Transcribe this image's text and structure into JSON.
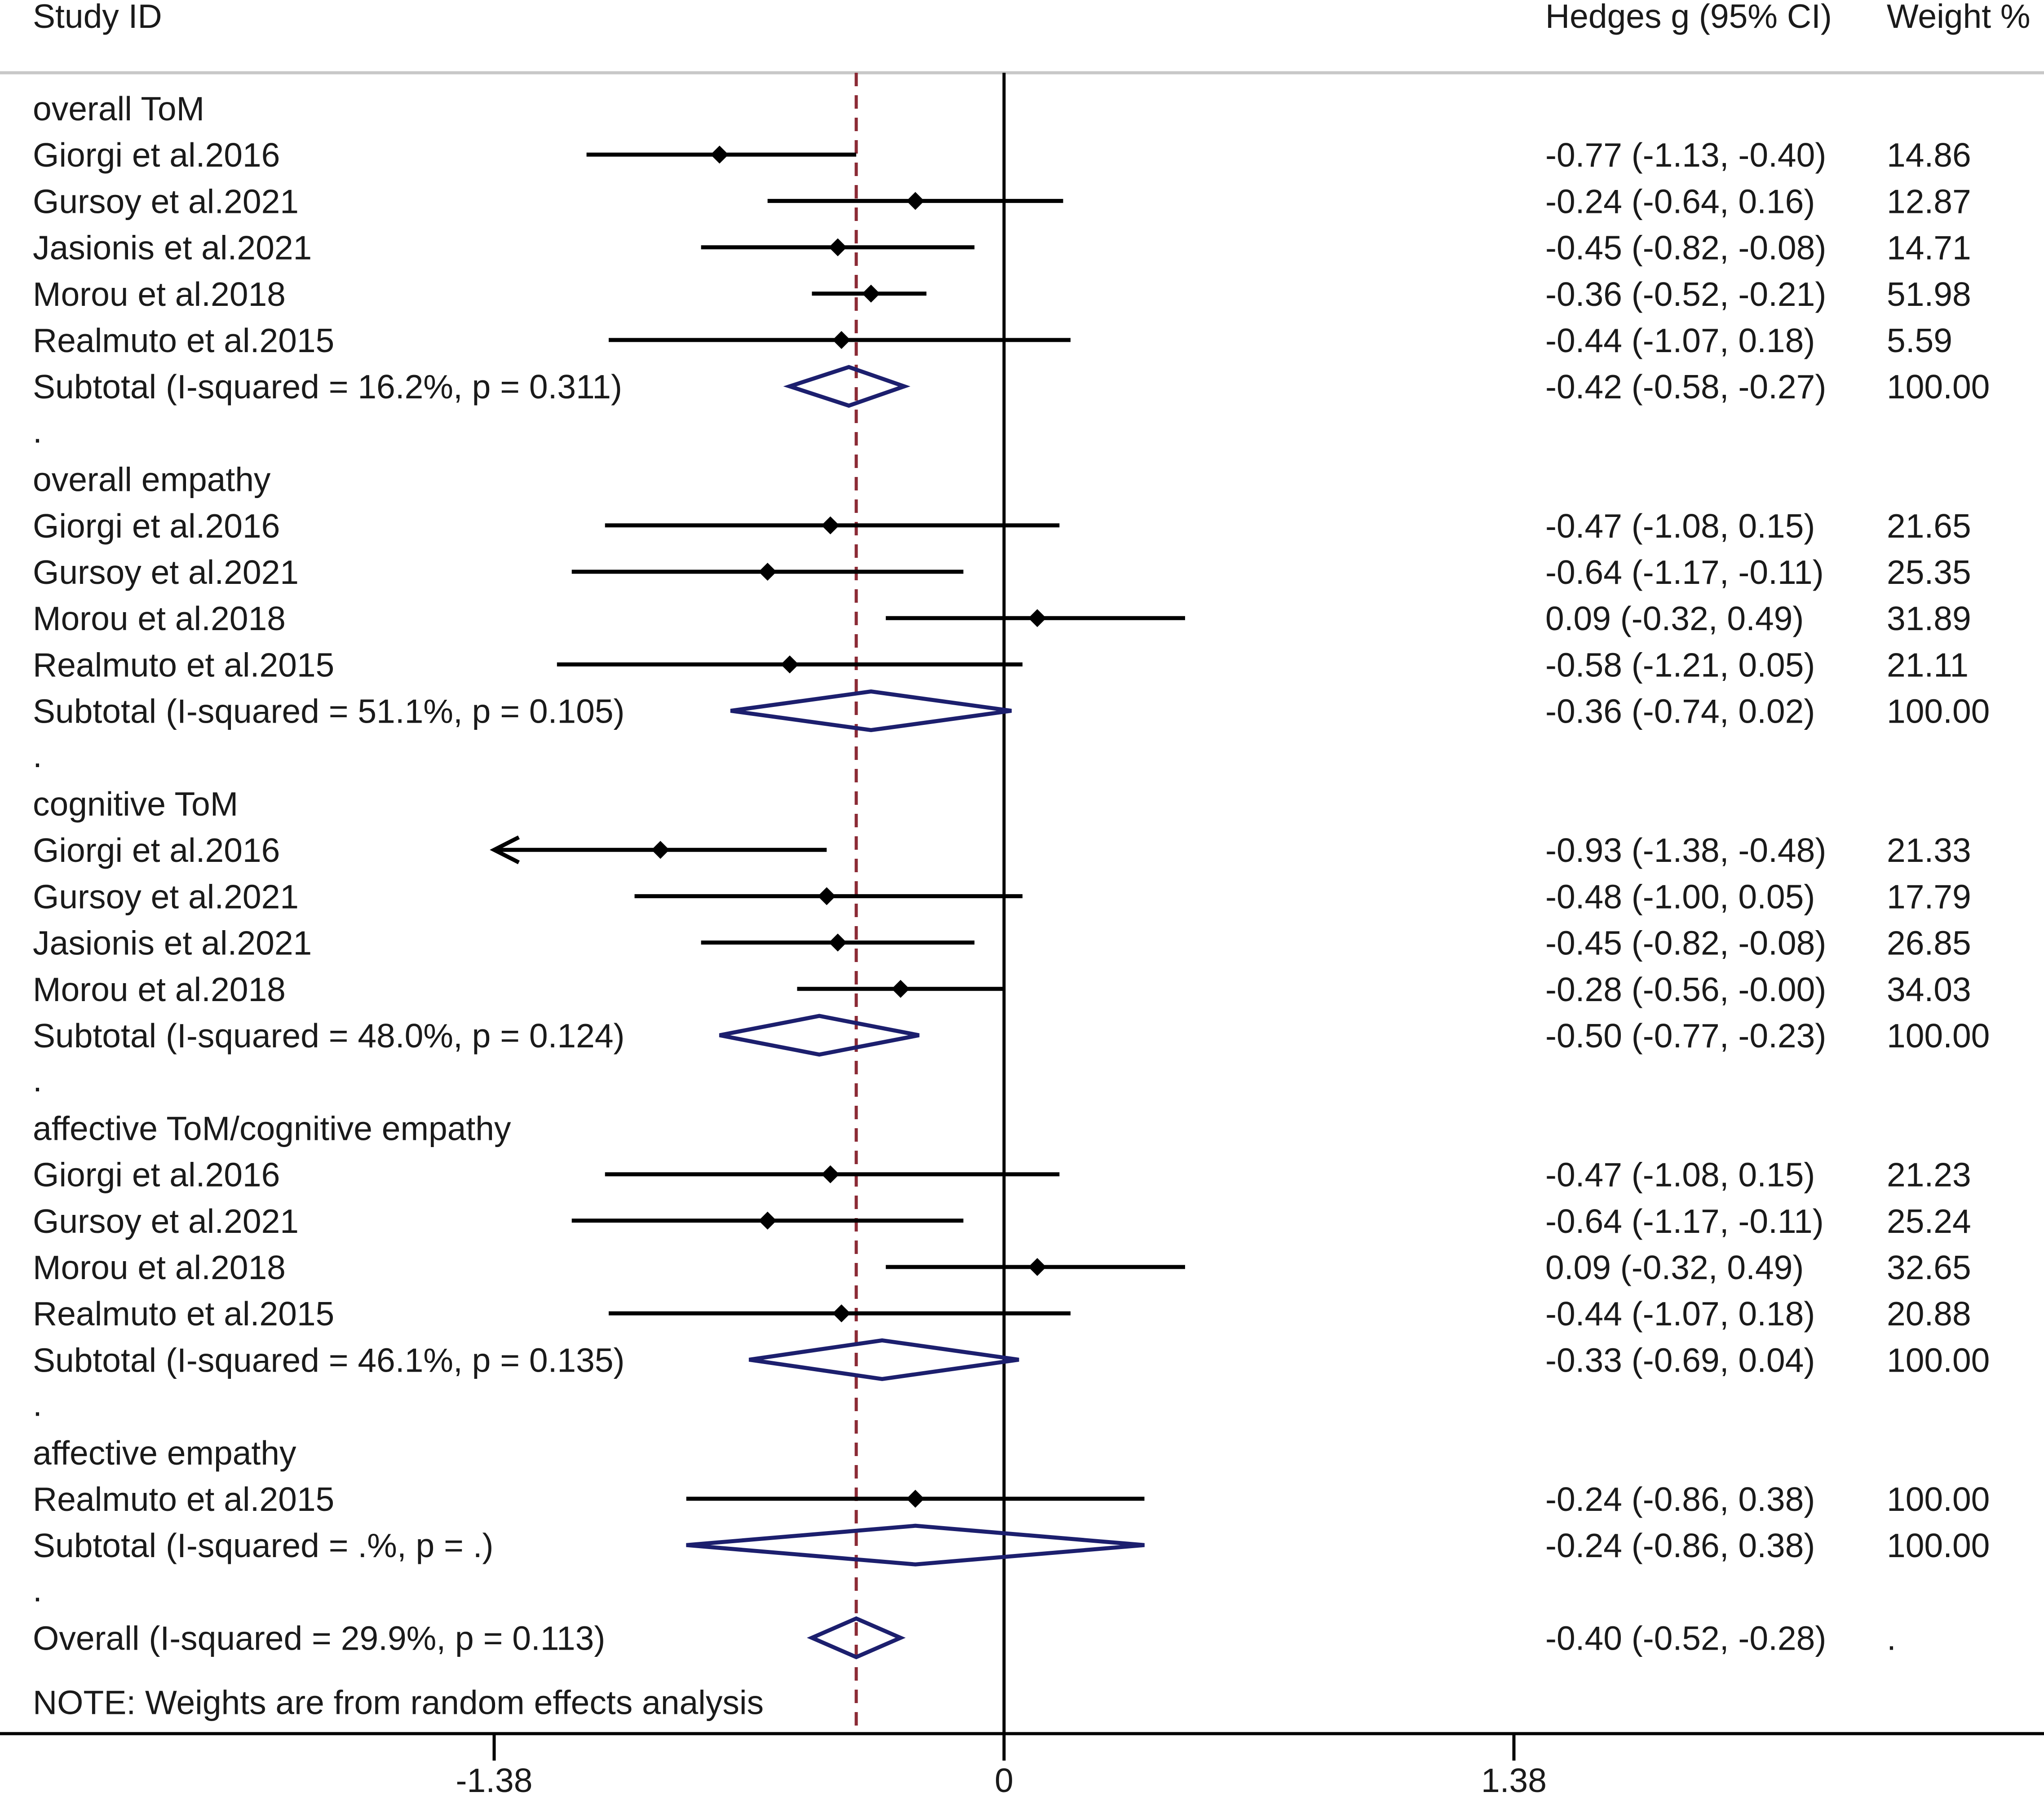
{
  "chart_data": {
    "type": "forest",
    "headers": {
      "study": "Study ID",
      "effect": "Hedges g (95% CI)",
      "weight": "Weight %"
    },
    "xticks": [
      {
        "value": -1.38,
        "label": "-1.38"
      },
      {
        "value": 0,
        "label": "0"
      },
      {
        "value": 1.38,
        "label": "1.38"
      }
    ],
    "xlim": [
      -2.7,
      2.75
    ],
    "overall_reference": -0.4,
    "rows": [
      {
        "kind": "group",
        "label": "overall ToM"
      },
      {
        "kind": "study",
        "label": "Giorgi et al.2016",
        "es": -0.77,
        "lo": -1.13,
        "hi": -0.4,
        "ci_text": "-0.77 (-1.13, -0.40)",
        "weight": "14.86"
      },
      {
        "kind": "study",
        "label": "Gursoy et al.2021",
        "es": -0.24,
        "lo": -0.64,
        "hi": 0.16,
        "ci_text": "-0.24 (-0.64, 0.16)",
        "weight": "12.87"
      },
      {
        "kind": "study",
        "label": "Jasionis et al.2021",
        "es": -0.45,
        "lo": -0.82,
        "hi": -0.08,
        "ci_text": "-0.45 (-0.82, -0.08)",
        "weight": "14.71"
      },
      {
        "kind": "study",
        "label": "Morou et al.2018",
        "es": -0.36,
        "lo": -0.52,
        "hi": -0.21,
        "ci_text": "-0.36 (-0.52, -0.21)",
        "weight": "51.98"
      },
      {
        "kind": "study",
        "label": "Realmuto et al.2015",
        "es": -0.44,
        "lo": -1.07,
        "hi": 0.18,
        "ci_text": "-0.44 (-1.07, 0.18)",
        "weight": "5.59"
      },
      {
        "kind": "subtotal",
        "label": "Subtotal  (I-squared = 16.2%, p = 0.311)",
        "es": -0.42,
        "lo": -0.58,
        "hi": -0.27,
        "ci_text": "-0.42 (-0.58, -0.27)",
        "weight": "100.00"
      },
      {
        "kind": "dot",
        "label": "."
      },
      {
        "kind": "group",
        "label": "overall empathy"
      },
      {
        "kind": "study",
        "label": "Giorgi et al.2016",
        "es": -0.47,
        "lo": -1.08,
        "hi": 0.15,
        "ci_text": "-0.47 (-1.08, 0.15)",
        "weight": "21.65"
      },
      {
        "kind": "study",
        "label": "Gursoy et al.2021",
        "es": -0.64,
        "lo": -1.17,
        "hi": -0.11,
        "ci_text": "-0.64 (-1.17, -0.11)",
        "weight": "25.35"
      },
      {
        "kind": "study",
        "label": "Morou et al.2018",
        "es": 0.09,
        "lo": -0.32,
        "hi": 0.49,
        "ci_text": "0.09 (-0.32, 0.49)",
        "weight": "31.89"
      },
      {
        "kind": "study",
        "label": "Realmuto et al.2015",
        "es": -0.58,
        "lo": -1.21,
        "hi": 0.05,
        "ci_text": "-0.58 (-1.21, 0.05)",
        "weight": "21.11"
      },
      {
        "kind": "subtotal",
        "label": "Subtotal  (I-squared = 51.1%, p = 0.105)",
        "es": -0.36,
        "lo": -0.74,
        "hi": 0.02,
        "ci_text": "-0.36 (-0.74, 0.02)",
        "weight": "100.00"
      },
      {
        "kind": "dot",
        "label": "."
      },
      {
        "kind": "group",
        "label": "cognitive ToM"
      },
      {
        "kind": "study",
        "label": "Giorgi et al.2016",
        "es": -0.93,
        "lo": -1.38,
        "hi": -0.48,
        "ci_text": "-0.93 (-1.38, -0.48)",
        "weight": "21.33",
        "arrow_left": true
      },
      {
        "kind": "study",
        "label": "Gursoy et al.2021",
        "es": -0.48,
        "lo": -1.0,
        "hi": 0.05,
        "ci_text": "-0.48 (-1.00, 0.05)",
        "weight": "17.79"
      },
      {
        "kind": "study",
        "label": "Jasionis et al.2021",
        "es": -0.45,
        "lo": -0.82,
        "hi": -0.08,
        "ci_text": "-0.45 (-0.82, -0.08)",
        "weight": "26.85"
      },
      {
        "kind": "study",
        "label": "Morou et al.2018",
        "es": -0.28,
        "lo": -0.56,
        "hi": -0.0,
        "ci_text": "-0.28 (-0.56, -0.00)",
        "weight": "34.03"
      },
      {
        "kind": "subtotal",
        "label": "Subtotal  (I-squared = 48.0%, p = 0.124)",
        "es": -0.5,
        "lo": -0.77,
        "hi": -0.23,
        "ci_text": "-0.50 (-0.77, -0.23)",
        "weight": "100.00"
      },
      {
        "kind": "dot",
        "label": "."
      },
      {
        "kind": "group",
        "label": "affective ToM/cognitive empathy"
      },
      {
        "kind": "study",
        "label": "Giorgi et al.2016",
        "es": -0.47,
        "lo": -1.08,
        "hi": 0.15,
        "ci_text": "-0.47 (-1.08, 0.15)",
        "weight": "21.23"
      },
      {
        "kind": "study",
        "label": "Gursoy et al.2021",
        "es": -0.64,
        "lo": -1.17,
        "hi": -0.11,
        "ci_text": "-0.64 (-1.17, -0.11)",
        "weight": "25.24"
      },
      {
        "kind": "study",
        "label": "Morou et al.2018",
        "es": 0.09,
        "lo": -0.32,
        "hi": 0.49,
        "ci_text": "0.09 (-0.32, 0.49)",
        "weight": "32.65"
      },
      {
        "kind": "study",
        "label": "Realmuto et al.2015",
        "es": -0.44,
        "lo": -1.07,
        "hi": 0.18,
        "ci_text": "-0.44 (-1.07, 0.18)",
        "weight": "20.88"
      },
      {
        "kind": "subtotal",
        "label": "Subtotal  (I-squared = 46.1%, p = 0.135)",
        "es": -0.33,
        "lo": -0.69,
        "hi": 0.04,
        "ci_text": "-0.33 (-0.69, 0.04)",
        "weight": "100.00"
      },
      {
        "kind": "dot",
        "label": "."
      },
      {
        "kind": "group",
        "label": "affective empathy"
      },
      {
        "kind": "study",
        "label": "Realmuto et al.2015",
        "es": -0.24,
        "lo": -0.86,
        "hi": 0.38,
        "ci_text": "-0.24 (-0.86, 0.38)",
        "weight": "100.00"
      },
      {
        "kind": "subtotal",
        "label": "Subtotal  (I-squared = .%, p = .)",
        "es": -0.24,
        "lo": -0.86,
        "hi": 0.38,
        "ci_text": "-0.24 (-0.86, 0.38)",
        "weight": "100.00"
      },
      {
        "kind": "dot",
        "label": "."
      },
      {
        "kind": "overall",
        "label": "Overall  (I-squared = 29.9%, p = 0.113)",
        "es": -0.4,
        "lo": -0.52,
        "hi": -0.28,
        "ci_text": "-0.40 (-0.52, -0.28)",
        "weight": "."
      }
    ],
    "note": "NOTE: Weights are from random effects analysis",
    "colors": {
      "ink": "#000000",
      "diamond": "#1c1f6e",
      "reference": "#8b2a35"
    }
  }
}
